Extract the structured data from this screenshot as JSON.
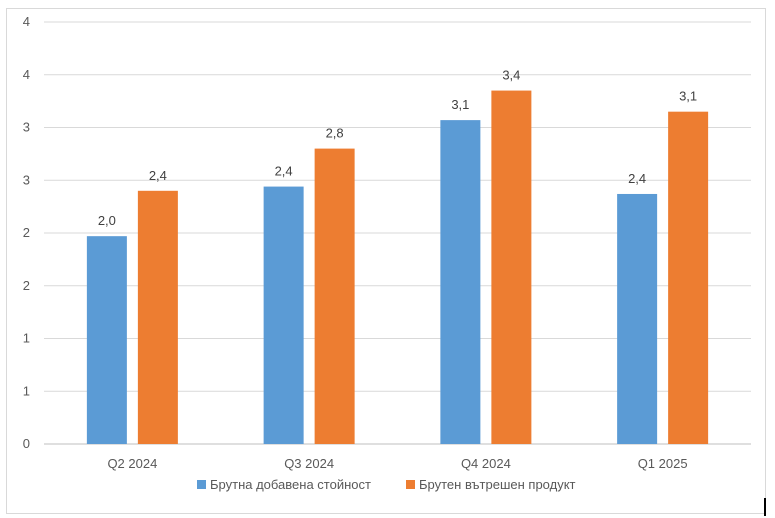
{
  "chart_data": {
    "type": "bar",
    "title": "",
    "xlabel": "",
    "ylabel": "",
    "categories": [
      "Q2 2024",
      "Q3 2024",
      "Q4 2024",
      "Q1 2025"
    ],
    "y_tick_labels": [
      "0",
      "1",
      "1",
      "2",
      "2",
      "3",
      "3",
      "4",
      "4"
    ],
    "ylim": [
      0,
      4.0
    ],
    "grid": true,
    "legend_position": "bottom",
    "series": [
      {
        "name": "Брутна добавена стойност",
        "color": "#5b9bd5",
        "values": [
          1.97,
          2.44,
          3.07,
          2.37
        ],
        "labels": [
          "2,0",
          "2,4",
          "3,1",
          "2,4"
        ]
      },
      {
        "name": "Брутен вътрешен продукт",
        "color": "#ed7d31",
        "values": [
          2.4,
          2.8,
          3.35,
          3.15
        ],
        "labels": [
          "2,4",
          "2,8",
          "3,4",
          "3,1"
        ]
      }
    ]
  }
}
